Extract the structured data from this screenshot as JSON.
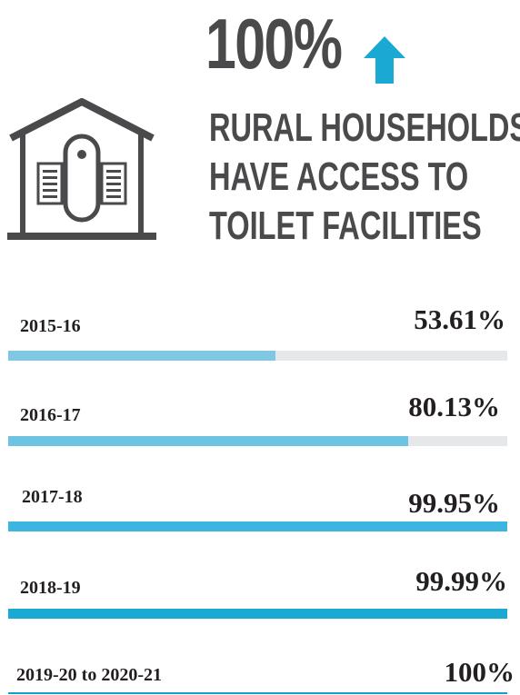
{
  "headline": {
    "percent": "100%",
    "lines": [
      "RURAL HOUSEHOLDS",
      "HAVE ACCESS TO",
      "TOILET FACILITIES"
    ]
  },
  "icons": {
    "arrow": "up-arrow-icon",
    "house": "house-toilet-icon"
  },
  "colors": {
    "text_dark": "#4a4a4c",
    "accent": "#1aa9d3",
    "track": "#e6e7e8"
  },
  "chart_data": {
    "type": "bar",
    "orientation": "horizontal",
    "categories": [
      "2015-16",
      "2016-17",
      "2017-18",
      "2018-19",
      "2019-20 to 2020-21"
    ],
    "values": [
      53.61,
      80.13,
      99.95,
      99.99,
      100
    ],
    "value_labels": [
      "53.61%",
      "80.13%",
      "99.95%",
      "99.99%",
      "100%"
    ],
    "xlim": [
      0,
      100
    ],
    "bar_colors": [
      "#7ec8e3",
      "#6cc3e2",
      "#3cb6e0",
      "#1aa9d3",
      "#0ea0cf"
    ]
  }
}
